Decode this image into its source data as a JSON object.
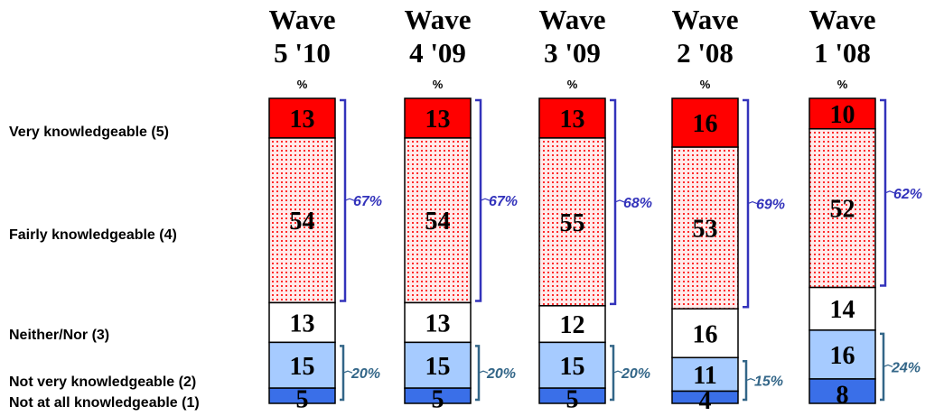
{
  "chart_data": {
    "type": "bar",
    "stacked": true,
    "unit_label": "%",
    "categories": [
      "Wave\n5 '10",
      "Wave\n4 '09",
      "Wave\n3 '09",
      "Wave\n2 '08",
      "Wave\n1 '08"
    ],
    "header_lines": [
      [
        "Wave",
        "5 '10"
      ],
      [
        "Wave",
        "4 '09"
      ],
      [
        "Wave",
        "3 '09"
      ],
      [
        "Wave",
        "2 '08"
      ],
      [
        "Wave",
        "1 '08"
      ]
    ],
    "series": [
      {
        "name": "Very knowledgeable (5)",
        "values": [
          13,
          13,
          13,
          16,
          10
        ],
        "color": "#ff0000"
      },
      {
        "name": "Fairly knowledgeable (4)",
        "values": [
          54,
          54,
          55,
          53,
          52
        ],
        "color": "#ffe4e4",
        "pattern": "red-dots"
      },
      {
        "name": "Neither/Nor (3)",
        "values": [
          13,
          13,
          12,
          16,
          14
        ],
        "color": "#ffffff"
      },
      {
        "name": "Not very knowledgeable (2)",
        "values": [
          15,
          15,
          15,
          11,
          16
        ],
        "color": "#a6cbff"
      },
      {
        "name": "Not at all knowledgeable (1)",
        "values": [
          5,
          5,
          5,
          4,
          8
        ],
        "color": "#3a6fe8"
      }
    ],
    "top_net": {
      "values": [
        "67%",
        "67%",
        "68%",
        "69%",
        "62%"
      ],
      "color": "#3333bb"
    },
    "bottom_net": {
      "values": [
        "20%",
        "20%",
        "20%",
        "15%",
        "24%"
      ],
      "color": "#336688"
    }
  }
}
